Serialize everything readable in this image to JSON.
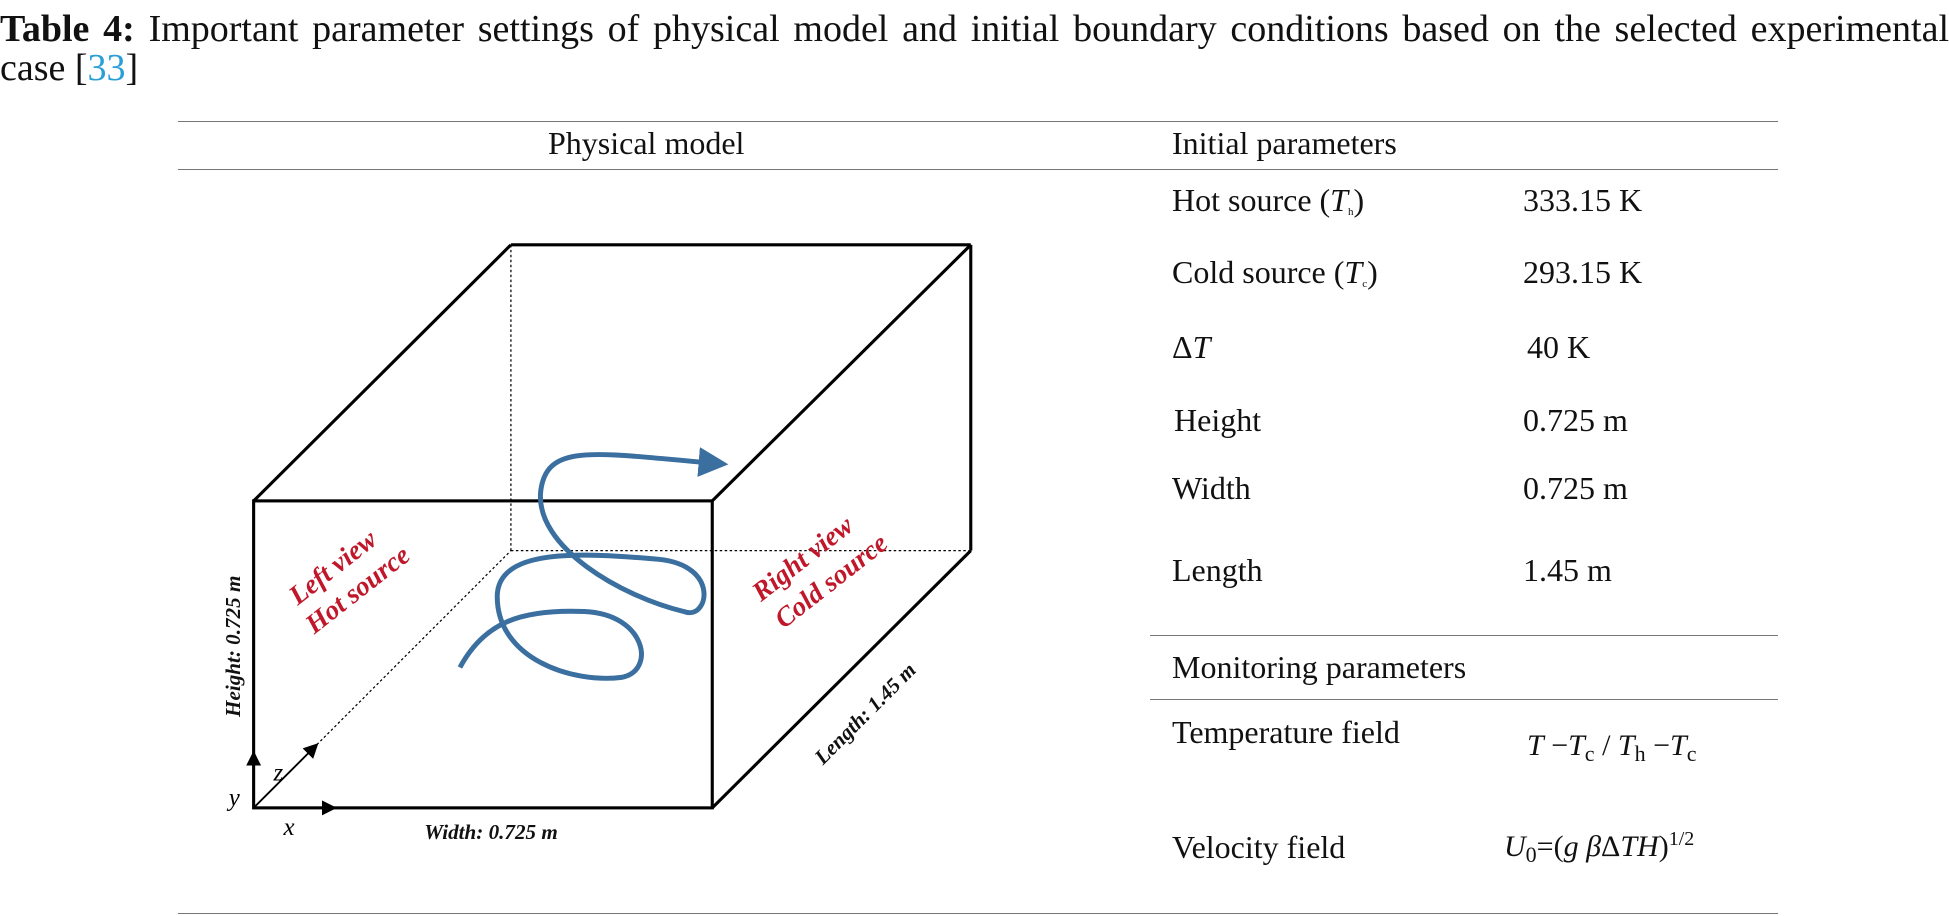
{
  "caption": {
    "label": "Table 4:",
    "text": "Important parameter settings of physical model and initial boundary conditions based on the selected experimental case [",
    "ref": "33",
    "close": "]"
  },
  "headers": {
    "physical_model": "Physical model",
    "initial": "Initial parameters",
    "monitoring": "Monitoring parameters"
  },
  "initial_rows": [
    {
      "label": "Hot source (",
      "symbol": "T",
      "sub": "h",
      "close": ")",
      "value": "333.15 K"
    },
    {
      "label": "Cold source (",
      "symbol": "T",
      "sub": "c",
      "close": ")",
      "value": "293.15 K"
    },
    {
      "label": "Δ",
      "symbol": "T",
      "value": "40 K"
    },
    {
      "label": "Height",
      "value": "0.725 m"
    },
    {
      "label": "Width",
      "value": "0.725 m"
    },
    {
      "label": "Length",
      "value": "1.45 m"
    }
  ],
  "monitoring_rows": [
    {
      "label": "Temperature field",
      "formula": "T − Tc / Th − Tc"
    },
    {
      "label": "Velocity field",
      "formula": "U0=(gβΔTH)^1/2"
    }
  ],
  "diagram": {
    "left_view": "Left view",
    "hot_source": "Hot source",
    "right_view": "Right view",
    "cold_source": "Cold source",
    "height": "Height: 0.725 m",
    "width": "Width: 0.725 m",
    "length": "Length: 1.45 m",
    "axis_x": "x",
    "axis_y": "y",
    "axis_z": "z",
    "colors": {
      "label": "#c0182a",
      "flow": "#3a6f9f"
    }
  }
}
